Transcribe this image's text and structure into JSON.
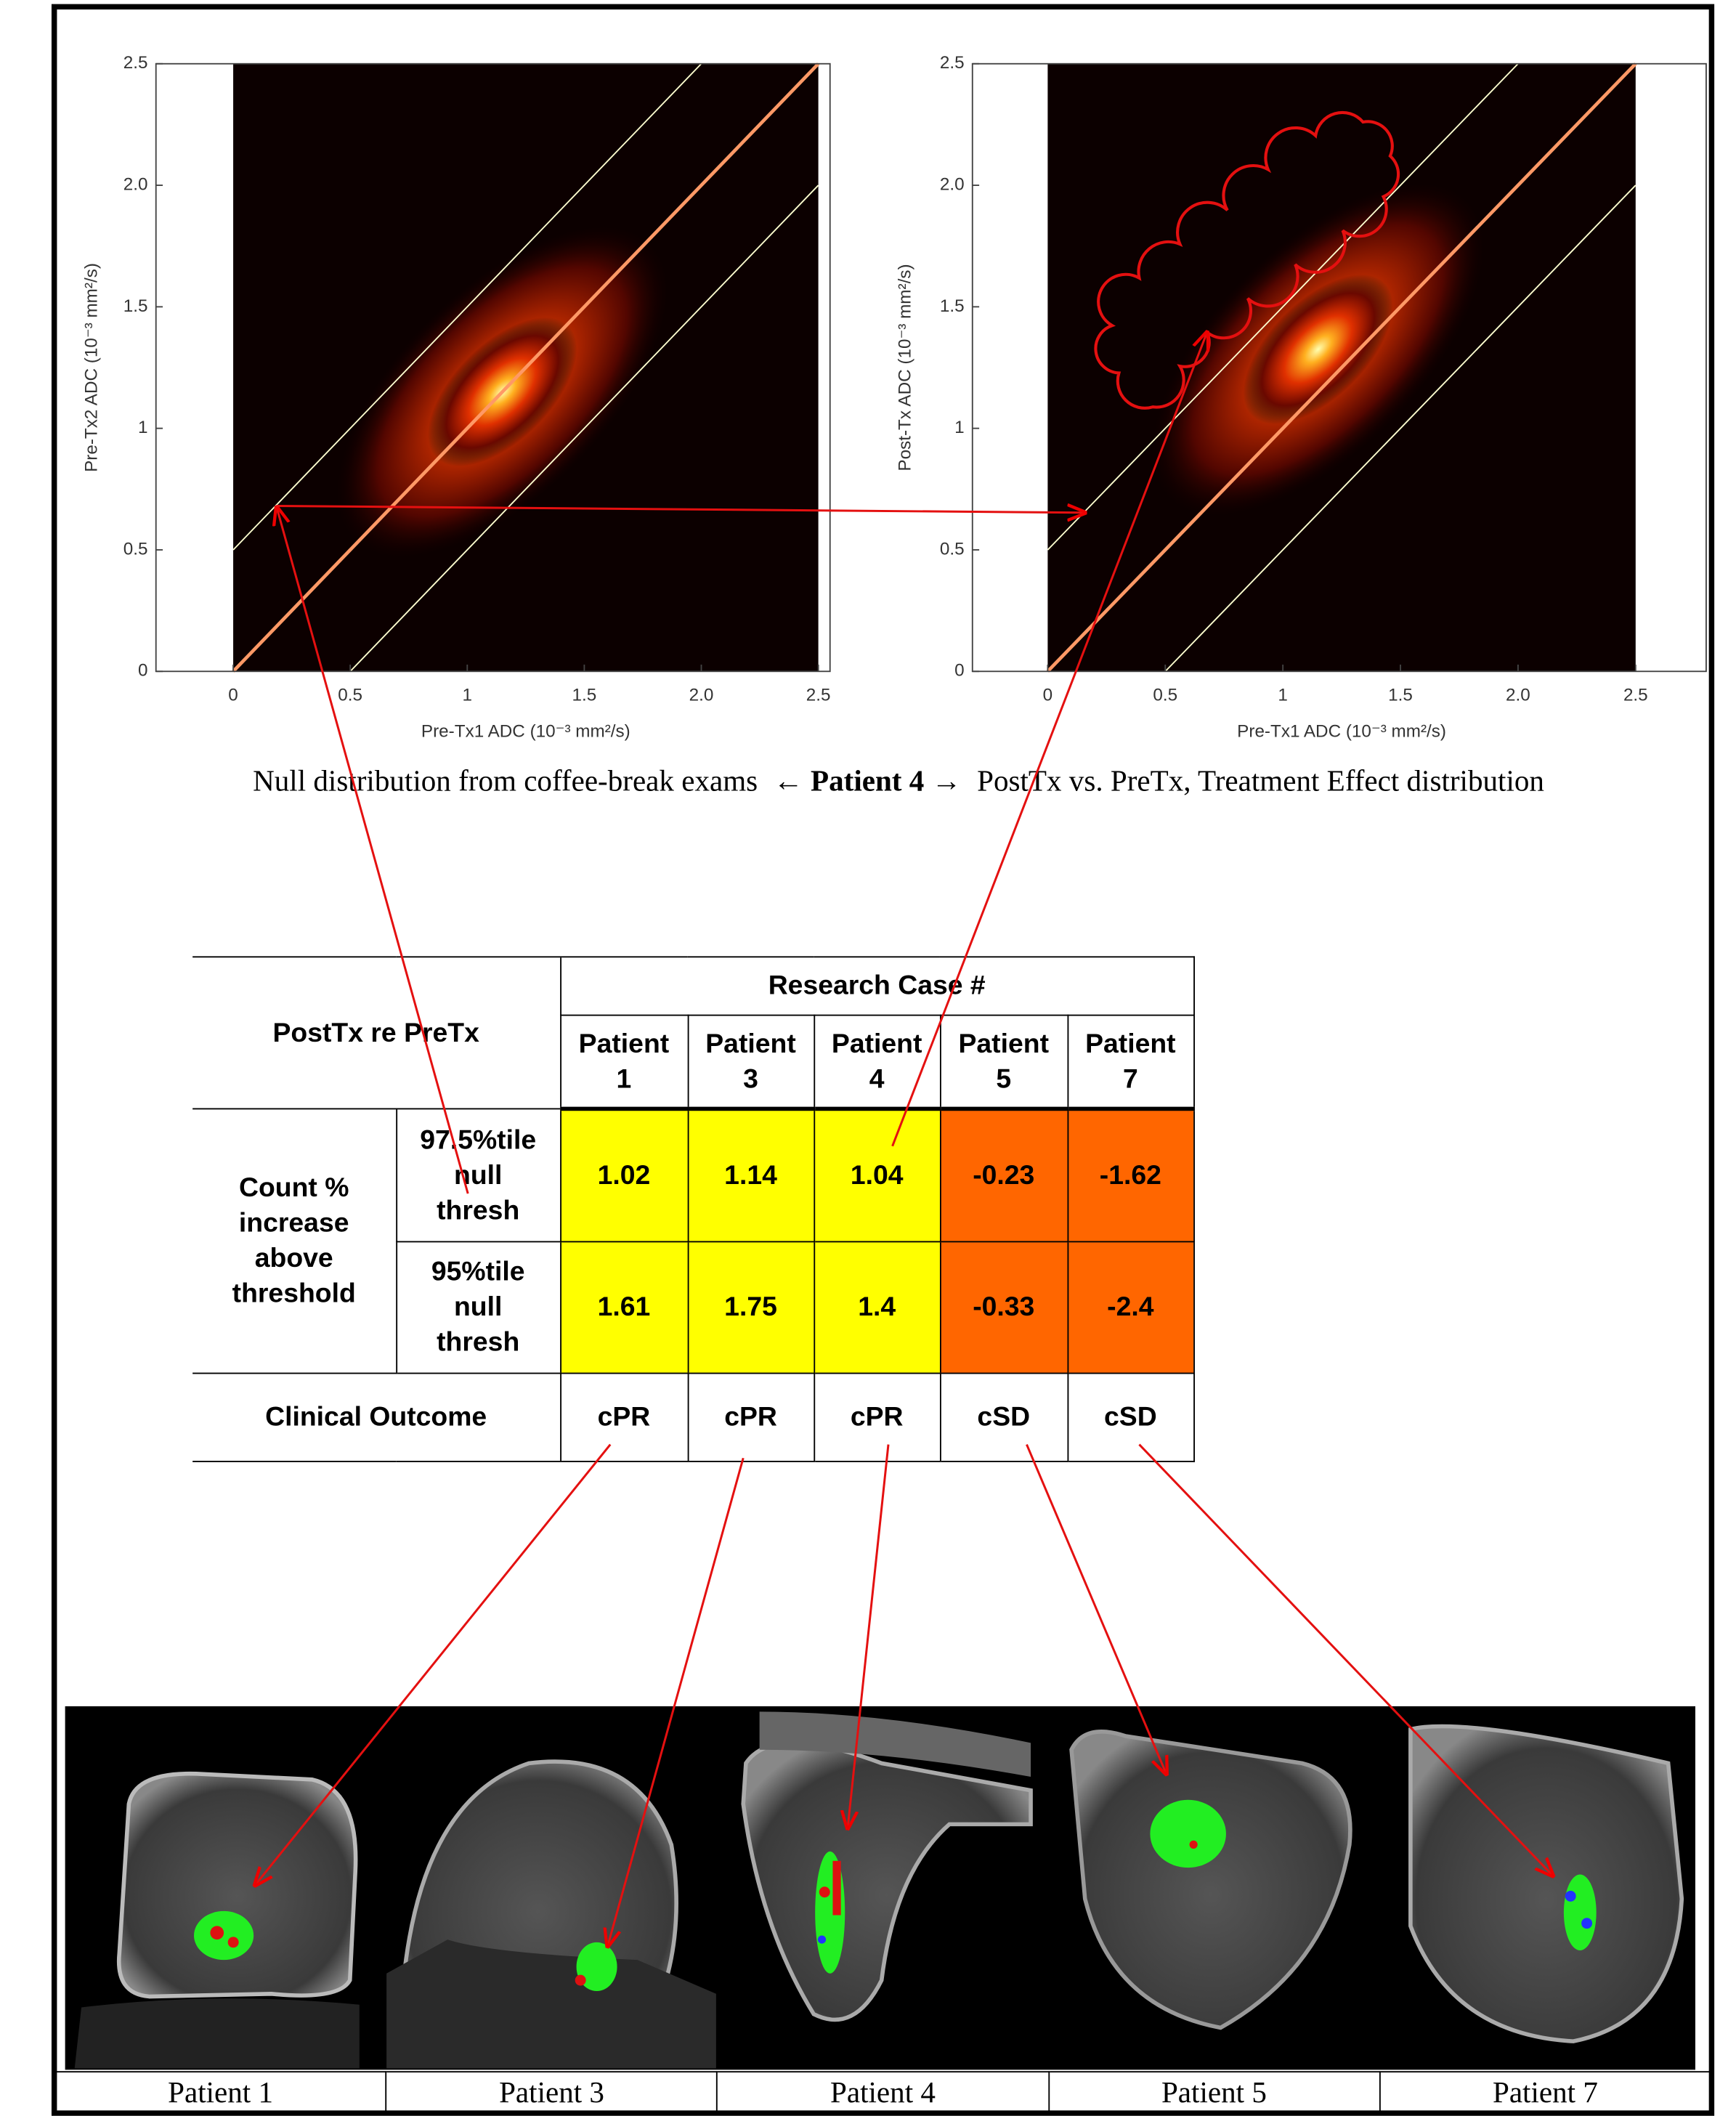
{
  "chart_data": [
    {
      "type": "heatmap",
      "x_label": "Pre-Tx1 ADC (10⁻³ mm²/s)",
      "y_label": "Pre-Tx2 ADC (10⁻³ mm²/s)",
      "xlim": [
        -0.33,
        2.55
      ],
      "ylim": [
        0,
        2.5
      ],
      "xticks": [
        0,
        0.5,
        1,
        1.5,
        {
          "value": 2,
          "label": "2.0"
        },
        2.5
      ],
      "yticks": [
        0,
        0.5,
        1,
        1.5,
        {
          "value": 2,
          "label": "2.0"
        },
        2.5
      ]
    },
    {
      "type": "heatmap",
      "x_label": "Pre-Tx1 ADC (10⁻³ mm²/s)",
      "y_label": "Post-Tx ADC (10⁻³ mm²/s)",
      "xlim": [
        -0.32,
        2.8
      ],
      "ylim": [
        0,
        2.5
      ],
      "xticks": [
        0,
        0.5,
        1,
        1.5,
        {
          "value": 2,
          "label": "2.0"
        },
        2.5
      ],
      "yticks": [
        0,
        0.5,
        1,
        1.5,
        {
          "value": 2,
          "label": "2.0"
        },
        2.5
      ]
    }
  ],
  "caption": {
    "left": "Null distribution from coffee-break exams",
    "center": "← Patient 4 →",
    "right": "PostTx vs. PreTx, Treatment Effect distribution"
  },
  "table": {
    "corner": "PostTx re PreTx",
    "group_header": "Research Case #",
    "columns": [
      "Patient 1",
      "Patient 3",
      "Patient 4",
      "Patient 5",
      "Patient 7"
    ],
    "row_group": "Count % increase above threshold",
    "rows": [
      {
        "label": "97.5%tile null thresh",
        "values": [
          1.02,
          1.14,
          1.04,
          -0.23,
          -1.62
        ]
      },
      {
        "label": "95%tile null thresh",
        "values": [
          1.61,
          1.75,
          1.4,
          -0.33,
          -2.4
        ]
      }
    ],
    "outcome": {
      "label": "Clinical Outcome",
      "values": [
        "cPR",
        "cPR",
        "cPR",
        "cSD",
        "cSD"
      ]
    }
  },
  "image_labels": [
    "Patient 1",
    "Patient 3",
    "Patient 4",
    "Patient 5",
    "Patient 7"
  ]
}
